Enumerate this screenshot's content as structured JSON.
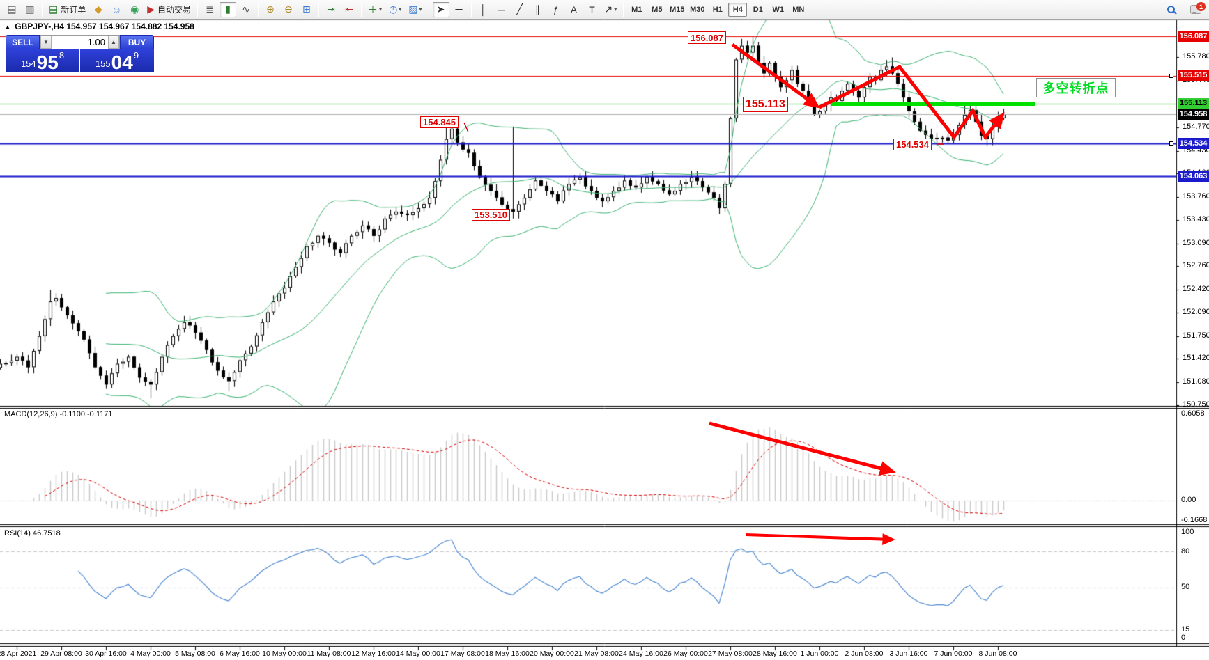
{
  "header": {
    "symbol_period": "GBPJPY-,H4",
    "ohlc": "154.957 154.967 154.882 154.958"
  },
  "one_click": {
    "sell_label": "SELL",
    "buy_label": "BUY",
    "volume": "1.00",
    "sell_small": "154",
    "sell_big": "95",
    "sell_sup": "8",
    "buy_small": "155",
    "buy_big": "04",
    "buy_sup": "9"
  },
  "toolbar": {
    "notification_count": "1",
    "items": [
      {
        "type": "icon",
        "name": "new-chart-icon",
        "glyph": "▤",
        "color": "#666666"
      },
      {
        "type": "icon",
        "name": "profiles-icon",
        "glyph": "▥",
        "color": "#666666"
      },
      {
        "type": "sep"
      },
      {
        "type": "icon",
        "name": "new-order-button",
        "glyph": "▤",
        "color": "#2f7d32",
        "label": "新订单"
      },
      {
        "type": "icon",
        "name": "metaeditor-icon",
        "glyph": "◆",
        "color": "#d49a2a"
      },
      {
        "type": "icon",
        "name": "community-icon",
        "glyph": "☺",
        "color": "#4a86d8"
      },
      {
        "type": "icon",
        "name": "signals-icon",
        "glyph": "◉",
        "color": "#3aa05a"
      },
      {
        "type": "icon",
        "name": "autotrading-button",
        "glyph": "▶",
        "color": "#c03030",
        "label": "自动交易"
      },
      {
        "type": "sep"
      },
      {
        "type": "icon",
        "name": "bar-chart-icon",
        "glyph": "≣",
        "color": "#555555"
      },
      {
        "type": "icon",
        "name": "candlestick-chart-icon",
        "glyph": "▮",
        "color": "#2f7d32",
        "active": true
      },
      {
        "type": "icon",
        "name": "line-chart-icon",
        "glyph": "∿",
        "color": "#555555"
      },
      {
        "type": "sep"
      },
      {
        "type": "icon",
        "name": "zoom-in-icon",
        "glyph": "⊕",
        "color": "#b08a2a"
      },
      {
        "type": "icon",
        "name": "zoom-out-icon",
        "glyph": "⊖",
        "color": "#b08a2a"
      },
      {
        "type": "icon",
        "name": "tile-windows-icon",
        "glyph": "⊞",
        "color": "#3a7ad4"
      },
      {
        "type": "sep"
      },
      {
        "type": "icon",
        "name": "auto-scroll-icon",
        "glyph": "⇥",
        "color": "#2f7d32"
      },
      {
        "type": "icon",
        "name": "chart-shift-icon",
        "glyph": "⇤",
        "color": "#c03030"
      },
      {
        "type": "sep"
      },
      {
        "type": "icon",
        "name": "indicators-icon",
        "glyph": "＋",
        "color": "#2f7d32",
        "caret": true
      },
      {
        "type": "icon",
        "name": "periods-icon",
        "glyph": "◷",
        "color": "#3a7ad4",
        "caret": true
      },
      {
        "type": "icon",
        "name": "templates-icon",
        "glyph": "▨",
        "color": "#3a7ad4",
        "caret": true
      },
      {
        "type": "sep"
      },
      {
        "type": "icon",
        "name": "cursor-icon",
        "glyph": "➤",
        "color": "#333333",
        "active": true
      },
      {
        "type": "icon",
        "name": "crosshair-icon",
        "glyph": "＋",
        "color": "#333333"
      },
      {
        "type": "sep"
      },
      {
        "type": "icon",
        "name": "vertical-line-icon",
        "glyph": "│",
        "color": "#333333"
      },
      {
        "type": "icon",
        "name": "horizontal-line-icon",
        "glyph": "─",
        "color": "#333333"
      },
      {
        "type": "icon",
        "name": "trendline-icon",
        "glyph": "╱",
        "color": "#333333"
      },
      {
        "type": "icon",
        "name": "equidistant-channel-icon",
        "glyph": "∥",
        "color": "#333333"
      },
      {
        "type": "icon",
        "name": "fibonacci-icon",
        "glyph": "ƒ",
        "color": "#333333"
      },
      {
        "type": "icon",
        "name": "text-icon",
        "glyph": "A",
        "color": "#333333"
      },
      {
        "type": "icon",
        "name": "text-label-icon",
        "glyph": "T",
        "color": "#333333"
      },
      {
        "type": "icon",
        "name": "arrows-tool-icon",
        "glyph": "↗",
        "color": "#333333",
        "caret": true
      },
      {
        "type": "sep"
      },
      {
        "type": "tf",
        "name": "timeframe-m1",
        "label": "M1"
      },
      {
        "type": "tf",
        "name": "timeframe-m5",
        "label": "M5"
      },
      {
        "type": "tf",
        "name": "timeframe-m15",
        "label": "M15"
      },
      {
        "type": "tf",
        "name": "timeframe-m30",
        "label": "M30"
      },
      {
        "type": "tf",
        "name": "timeframe-h1",
        "label": "H1"
      },
      {
        "type": "tf",
        "name": "timeframe-h4",
        "label": "H4",
        "active": true
      },
      {
        "type": "tf",
        "name": "timeframe-d1",
        "label": "D1"
      },
      {
        "type": "tf",
        "name": "timeframe-w1",
        "label": "W1"
      },
      {
        "type": "tf",
        "name": "timeframe-mn",
        "label": "MN"
      }
    ]
  },
  "annotations": {
    "turning_point": "多空转折点",
    "label_156087": "156.087",
    "label_155113": "155.113",
    "label_154845": "154.845",
    "label_153510": "153.510",
    "label_154534": "154.534"
  },
  "macd": {
    "label": "MACD(12,26,9) -0.1100 -0.1171",
    "axis_top": "0.6058",
    "axis_zero": "0.00",
    "axis_bottom": "-0.1668"
  },
  "rsi": {
    "label": "RSI(14) 46.7518",
    "axis": [
      "100",
      "80",
      "50",
      "15",
      "0"
    ]
  },
  "price_axis": {
    "ticks": [
      "155.780",
      "155.440",
      "154.770",
      "154.430",
      "154.100",
      "153.760",
      "153.430",
      "153.090",
      "152.760",
      "152.420",
      "152.090",
      "151.750",
      "151.420",
      "151.080",
      "150.750"
    ],
    "badges": [
      {
        "price": "156.087",
        "bg": "#e60000",
        "fg": "#ffffff"
      },
      {
        "price": "155.515",
        "bg": "#e60000",
        "fg": "#ffffff"
      },
      {
        "price": "155.113",
        "bg": "#33cc33",
        "fg": "#000000"
      },
      {
        "price": "154.958",
        "bg": "#000000",
        "fg": "#ffffff"
      },
      {
        "price": "154.534",
        "bg": "#1a1acc",
        "fg": "#ffffff"
      },
      {
        "price": "154.063",
        "bg": "#1a1acc",
        "fg": "#ffffff"
      }
    ]
  },
  "time_axis": {
    "labels": [
      {
        "bar": 0,
        "text": "28 Apr 2021"
      },
      {
        "bar": 8,
        "text": "29 Apr 08:00"
      },
      {
        "bar": 16,
        "text": "30 Apr 16:00"
      },
      {
        "bar": 24,
        "text": "4 May 00:00"
      },
      {
        "bar": 32,
        "text": "5 May 08:00"
      },
      {
        "bar": 40,
        "text": "6 May 16:00"
      },
      {
        "bar": 48,
        "text": "10 May 00:00"
      },
      {
        "bar": 56,
        "text": "11 May 08:00"
      },
      {
        "bar": 64,
        "text": "12 May 16:00"
      },
      {
        "bar": 72,
        "text": "14 May 00:00"
      },
      {
        "bar": 80,
        "text": "17 May 08:00"
      },
      {
        "bar": 88,
        "text": "18 May 16:00"
      },
      {
        "bar": 96,
        "text": "20 May 00:00"
      },
      {
        "bar": 104,
        "text": "21 May 08:00"
      },
      {
        "bar": 112,
        "text": "24 May 16:00"
      },
      {
        "bar": 120,
        "text": "26 May 00:00"
      },
      {
        "bar": 128,
        "text": "27 May 08:00"
      },
      {
        "bar": 136,
        "text": "28 May 16:00"
      },
      {
        "bar": 144,
        "text": "1 Jun 00:00"
      },
      {
        "bar": 152,
        "text": "2 Jun 08:00"
      },
      {
        "bar": 160,
        "text": "3 Jun 16:00"
      },
      {
        "bar": 168,
        "text": "7 Jun 00:00"
      },
      {
        "bar": 176,
        "text": "8 Jun 08:00"
      }
    ]
  },
  "chart_data": {
    "type": "candlestick",
    "symbol": "GBPJPY-",
    "timeframe": "H4",
    "bars": 181,
    "first_bar_index": -3,
    "y_axis": {
      "min": 150.75,
      "max": 156.087
    },
    "ohlc_current": {
      "open": 154.957,
      "high": 154.967,
      "low": 154.882,
      "close": 154.958
    },
    "close_anchors": [
      [
        -3,
        151.35
      ],
      [
        0,
        151.45
      ],
      [
        2,
        151.3
      ],
      [
        4,
        151.75
      ],
      [
        6,
        152.25
      ],
      [
        7,
        152.3
      ],
      [
        9,
        152.05
      ],
      [
        12,
        151.7
      ],
      [
        14,
        151.3
      ],
      [
        16,
        151.05
      ],
      [
        18,
        151.35
      ],
      [
        20,
        151.45
      ],
      [
        22,
        151.15
      ],
      [
        24,
        151.05
      ],
      [
        26,
        151.45
      ],
      [
        28,
        151.75
      ],
      [
        30,
        151.95
      ],
      [
        32,
        151.8
      ],
      [
        34,
        151.55
      ],
      [
        36,
        151.25
      ],
      [
        38,
        151.1
      ],
      [
        40,
        151.4
      ],
      [
        42,
        151.6
      ],
      [
        44,
        151.95
      ],
      [
        46,
        152.25
      ],
      [
        48,
        152.45
      ],
      [
        50,
        152.75
      ],
      [
        52,
        153.05
      ],
      [
        54,
        153.2
      ],
      [
        56,
        153.1
      ],
      [
        58,
        152.95
      ],
      [
        60,
        153.2
      ],
      [
        62,
        153.35
      ],
      [
        64,
        153.2
      ],
      [
        66,
        153.45
      ],
      [
        68,
        153.55
      ],
      [
        70,
        153.5
      ],
      [
        72,
        153.6
      ],
      [
        74,
        153.75
      ],
      [
        76,
        154.3
      ],
      [
        77,
        154.6
      ],
      [
        78,
        154.75
      ],
      [
        79,
        154.55
      ],
      [
        81,
        154.4
      ],
      [
        83,
        154.05
      ],
      [
        85,
        153.85
      ],
      [
        87,
        153.65
      ],
      [
        89,
        153.55
      ],
      [
        91,
        153.75
      ],
      [
        93,
        154
      ],
      [
        95,
        153.85
      ],
      [
        97,
        153.7
      ],
      [
        99,
        153.95
      ],
      [
        101,
        154.05
      ],
      [
        103,
        153.85
      ],
      [
        105,
        153.7
      ],
      [
        107,
        153.85
      ],
      [
        109,
        154
      ],
      [
        111,
        153.9
      ],
      [
        113,
        154.05
      ],
      [
        115,
        153.95
      ],
      [
        117,
        153.8
      ],
      [
        119,
        153.95
      ],
      [
        121,
        154.05
      ],
      [
        123,
        153.9
      ],
      [
        125,
        153.75
      ],
      [
        126,
        153.6
      ],
      [
        127,
        153.95
      ],
      [
        128,
        154.9
      ],
      [
        129,
        155.75
      ],
      [
        130,
        155.95
      ],
      [
        131,
        155.85
      ],
      [
        132,
        155.95
      ],
      [
        133,
        155.7
      ],
      [
        134,
        155.55
      ],
      [
        135,
        155.7
      ],
      [
        136,
        155.5
      ],
      [
        137,
        155.35
      ],
      [
        138,
        155.45
      ],
      [
        139,
        155.6
      ],
      [
        140,
        155.4
      ],
      [
        141,
        155.3
      ],
      [
        142,
        155.15
      ],
      [
        143,
        154.95
      ],
      [
        144,
        155
      ],
      [
        145,
        155.1
      ],
      [
        146,
        155.2
      ],
      [
        147,
        155.15
      ],
      [
        148,
        155.3
      ],
      [
        149,
        155.4
      ],
      [
        150,
        155.3
      ],
      [
        151,
        155.2
      ],
      [
        152,
        155.35
      ],
      [
        153,
        155.5
      ],
      [
        154,
        155.45
      ],
      [
        155,
        155.6
      ],
      [
        156,
        155.65
      ],
      [
        157,
        155.55
      ],
      [
        158,
        155.4
      ],
      [
        159,
        155.2
      ],
      [
        160,
        155
      ],
      [
        161,
        154.85
      ],
      [
        162,
        154.72
      ],
      [
        164,
        154.6
      ],
      [
        166,
        154.62
      ],
      [
        167,
        154.58
      ],
      [
        168,
        154.66
      ],
      [
        169,
        154.8
      ],
      [
        170,
        154.95
      ],
      [
        171,
        155.02
      ],
      [
        172,
        154.85
      ],
      [
        173,
        154.65
      ],
      [
        174,
        154.6
      ],
      [
        175,
        154.78
      ],
      [
        176,
        154.9
      ],
      [
        177,
        154.958
      ]
    ],
    "key_bars": {
      "6": {
        "high": 152.42
      },
      "24": {
        "low": 150.85
      },
      "38": {
        "low": 150.95
      },
      "77": {
        "high": 154.845
      },
      "89": {
        "high": 154.78,
        "low": 153.45
      },
      "131": {
        "high": 156.02
      },
      "132": {
        "high": 156.087
      },
      "143": {
        "low": 154.93
      },
      "157": {
        "high": 155.78
      },
      "167": {
        "low": 154.534
      },
      "170": {
        "high": 155.1
      },
      "174": {
        "low": 154.5
      }
    },
    "horizontal_lines": [
      {
        "price": 156.087,
        "color": "#e60000",
        "width": 1
      },
      {
        "price": 155.515,
        "color": "#e60000",
        "width": 1,
        "handles": true
      },
      {
        "price": 155.113,
        "color": "#00c000",
        "width": 1
      },
      {
        "price": 154.958,
        "color": "#b0b0b0",
        "width": 1,
        "note": "current price"
      },
      {
        "price": 154.534,
        "color": "#1a1acc",
        "width": 2,
        "handles": true
      },
      {
        "price": 154.063,
        "color": "#1a1acc",
        "width": 2
      }
    ],
    "indicators": {
      "bollinger_bands": {
        "period": 20,
        "deviation": 2,
        "color": "#3CB371"
      },
      "macd": {
        "fast": 12,
        "slow": 26,
        "signal": 9,
        "current": -0.11,
        "current_signal": -0.1171,
        "axis_max": 0.6058,
        "axis_min": -0.1668,
        "histogram_color": "#c8c8c8",
        "signal_color": "#e00000"
      },
      "rsi": {
        "period": 14,
        "current": 46.7518,
        "levels": [
          80,
          50,
          15
        ],
        "color": "#4e8ad2"
      }
    }
  }
}
